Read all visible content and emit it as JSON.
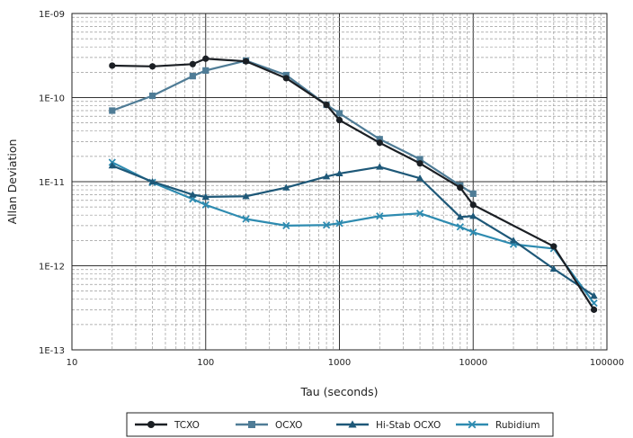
{
  "chart_data": {
    "type": "line",
    "title": "",
    "xlabel": "Tau (seconds)",
    "ylabel": "Allan Deviation",
    "xscale": "log",
    "yscale": "log",
    "xlim": [
      10,
      100000
    ],
    "ylim": [
      1e-13,
      1e-09
    ],
    "x_tick_labels": [
      "10",
      "100",
      "1000",
      "10000",
      "100000"
    ],
    "y_tick_labels": [
      "1E-09",
      "1E-10",
      "1E-11",
      "1E-12",
      "1E-13"
    ],
    "grid": "major and minor",
    "legend_position": "bottom",
    "series": [
      {
        "name": "TCXO",
        "color": "#1b1f24",
        "marker": "circle",
        "points": [
          [
            20,
            2.4e-10
          ],
          [
            40,
            2.35e-10
          ],
          [
            80,
            2.5e-10
          ],
          [
            100,
            2.9e-10
          ],
          [
            200,
            2.7e-10
          ],
          [
            400,
            1.7e-10
          ],
          [
            800,
            8.2e-11
          ],
          [
            1000,
            5.4e-11
          ],
          [
            2000,
            2.9e-11
          ],
          [
            4000,
            1.65e-11
          ],
          [
            8000,
            8.5e-12
          ],
          [
            10000,
            5.3e-12
          ],
          [
            40000,
            1.7e-12
          ],
          [
            80000,
            3e-13
          ]
        ]
      },
      {
        "name": "OCXO",
        "color": "#4f7c96",
        "marker": "square",
        "points": [
          [
            20,
            7e-11
          ],
          [
            40,
            1.05e-10
          ],
          [
            80,
            1.8e-10
          ],
          [
            100,
            2.1e-10
          ],
          [
            200,
            2.75e-10
          ],
          [
            400,
            1.85e-10
          ],
          [
            800,
            8.2e-11
          ],
          [
            1000,
            6.5e-11
          ],
          [
            2000,
            3.2e-11
          ],
          [
            4000,
            1.85e-11
          ],
          [
            8000,
            9e-12
          ],
          [
            10000,
            7.2e-12
          ]
        ]
      },
      {
        "name": "Hi-Stab OCXO",
        "color": "#1e5878",
        "marker": "triangle",
        "points": [
          [
            20,
            1.55e-11
          ],
          [
            40,
            1e-11
          ],
          [
            80,
            7e-12
          ],
          [
            100,
            6.6e-12
          ],
          [
            200,
            6.7e-12
          ],
          [
            400,
            8.5e-12
          ],
          [
            800,
            1.15e-11
          ],
          [
            1000,
            1.25e-11
          ],
          [
            2000,
            1.5e-11
          ],
          [
            4000,
            1.1e-11
          ],
          [
            8000,
            3.8e-12
          ],
          [
            10000,
            3.9e-12
          ],
          [
            20000,
            2e-12
          ],
          [
            40000,
            9.2e-13
          ],
          [
            80000,
            4.4e-13
          ]
        ]
      },
      {
        "name": "Rubidium",
        "color": "#2e8bb0",
        "marker": "x",
        "points": [
          [
            20,
            1.7e-11
          ],
          [
            40,
            9.8e-12
          ],
          [
            80,
            6.2e-12
          ],
          [
            100,
            5.3e-12
          ],
          [
            200,
            3.6e-12
          ],
          [
            400,
            3e-12
          ],
          [
            800,
            3.05e-12
          ],
          [
            1000,
            3.2e-12
          ],
          [
            2000,
            3.9e-12
          ],
          [
            4000,
            4.2e-12
          ],
          [
            8000,
            2.9e-12
          ],
          [
            10000,
            2.5e-12
          ],
          [
            20000,
            1.8e-12
          ],
          [
            40000,
            1.6e-12
          ],
          [
            80000,
            3.6e-13
          ]
        ]
      }
    ]
  }
}
